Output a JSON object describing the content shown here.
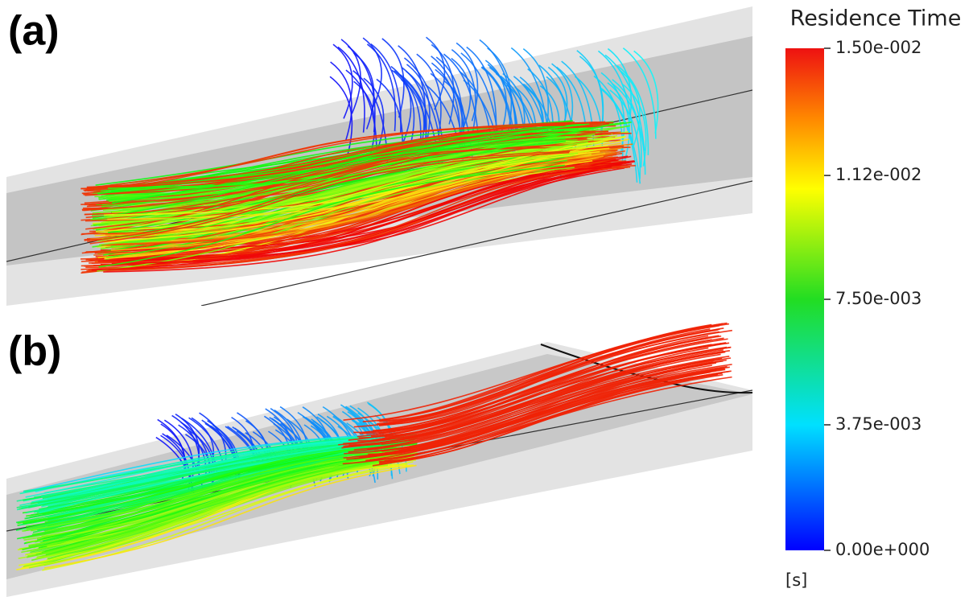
{
  "panels": [
    {
      "label": "(a)"
    },
    {
      "label": "(b)"
    }
  ],
  "colorbar": {
    "title": "Residence Time",
    "unit": "[s]",
    "lim": [
      0,
      0.015
    ],
    "ticks": [
      {
        "value": 0.015,
        "label": "1.50e-002"
      },
      {
        "value": 0.0112,
        "label": "1.12e-002"
      },
      {
        "value": 0.0075,
        "label": "7.50e-003"
      },
      {
        "value": 0.00375,
        "label": "3.75e-003"
      },
      {
        "value": 0,
        "label": "0.00e+000"
      }
    ]
  }
}
